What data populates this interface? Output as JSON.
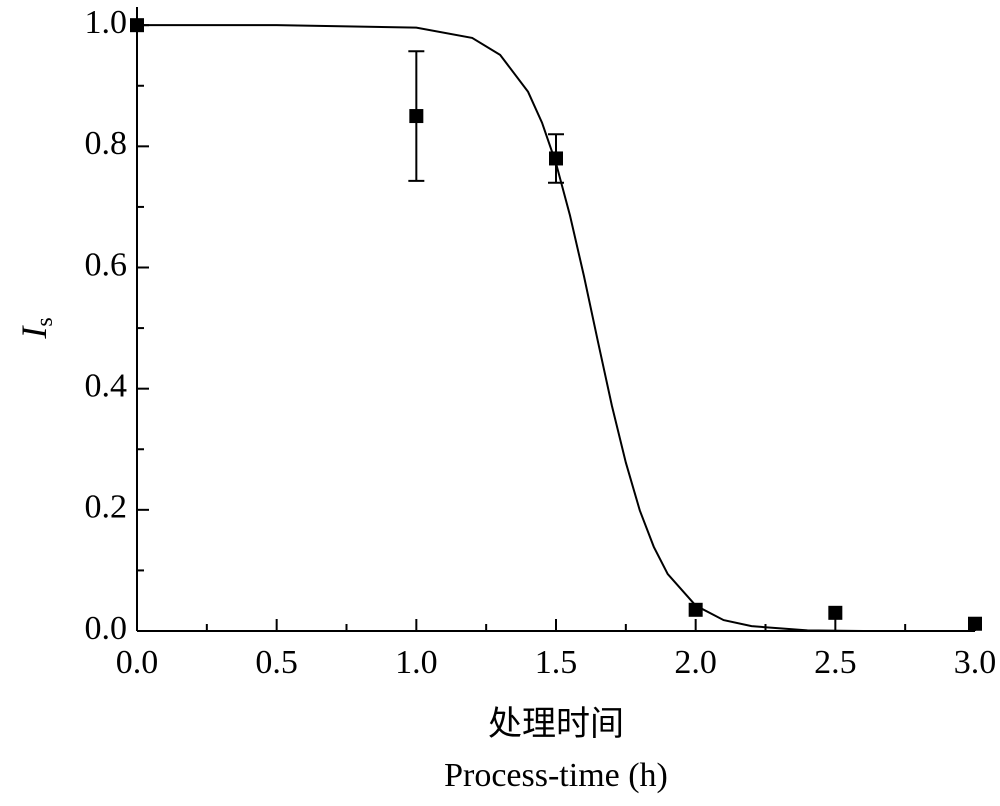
{
  "chart_data": {
    "type": "scatter",
    "ylabel": "I",
    "ylabel_subscript": "s",
    "xlabel": "处理时间",
    "xlabel_en": "Process-time (h)",
    "x": [
      0.0,
      1.0,
      1.5,
      2.0,
      2.5,
      3.0
    ],
    "values": [
      1.0,
      0.85,
      0.78,
      0.035,
      0.03,
      0.012
    ],
    "errors": [
      null,
      0.107,
      0.04,
      null,
      null,
      null
    ],
    "color": "#000000",
    "fit": {
      "x": [
        0,
        0.5,
        1.0,
        1.2,
        1.3,
        1.4,
        1.45,
        1.5,
        1.55,
        1.6,
        1.65,
        1.7,
        1.75,
        1.8,
        1.85,
        1.9,
        2.0,
        2.1,
        2.2,
        2.4,
        2.6,
        3.0
      ],
      "y": [
        1.0,
        1.0,
        0.996,
        0.979,
        0.951,
        0.89,
        0.839,
        0.772,
        0.686,
        0.586,
        0.478,
        0.372,
        0.278,
        0.199,
        0.139,
        0.094,
        0.042,
        0.018,
        0.008,
        0.001,
        0.0,
        0.0
      ]
    },
    "xlim": [
      0,
      3.0
    ],
    "ylim": [
      0,
      1.03
    ],
    "xticks": [
      {
        "value": 0,
        "label": "0.0"
      },
      0.5,
      {
        "value": 1,
        "label": "1.0"
      },
      1.5,
      {
        "value": 2,
        "label": "2.0"
      },
      2.5,
      {
        "value": 3,
        "label": "3.0"
      }
    ],
    "yticks": [
      {
        "value": 0,
        "label": "0.0"
      },
      0.2,
      0.4,
      0.6,
      0.8,
      {
        "value": 1,
        "label": "1.0"
      }
    ],
    "xminorticks": [
      0.25,
      0.75,
      1.25,
      1.75,
      2.25,
      2.75
    ],
    "yminorticks": [
      0.1,
      0.3,
      0.5,
      0.7,
      0.9
    ]
  }
}
